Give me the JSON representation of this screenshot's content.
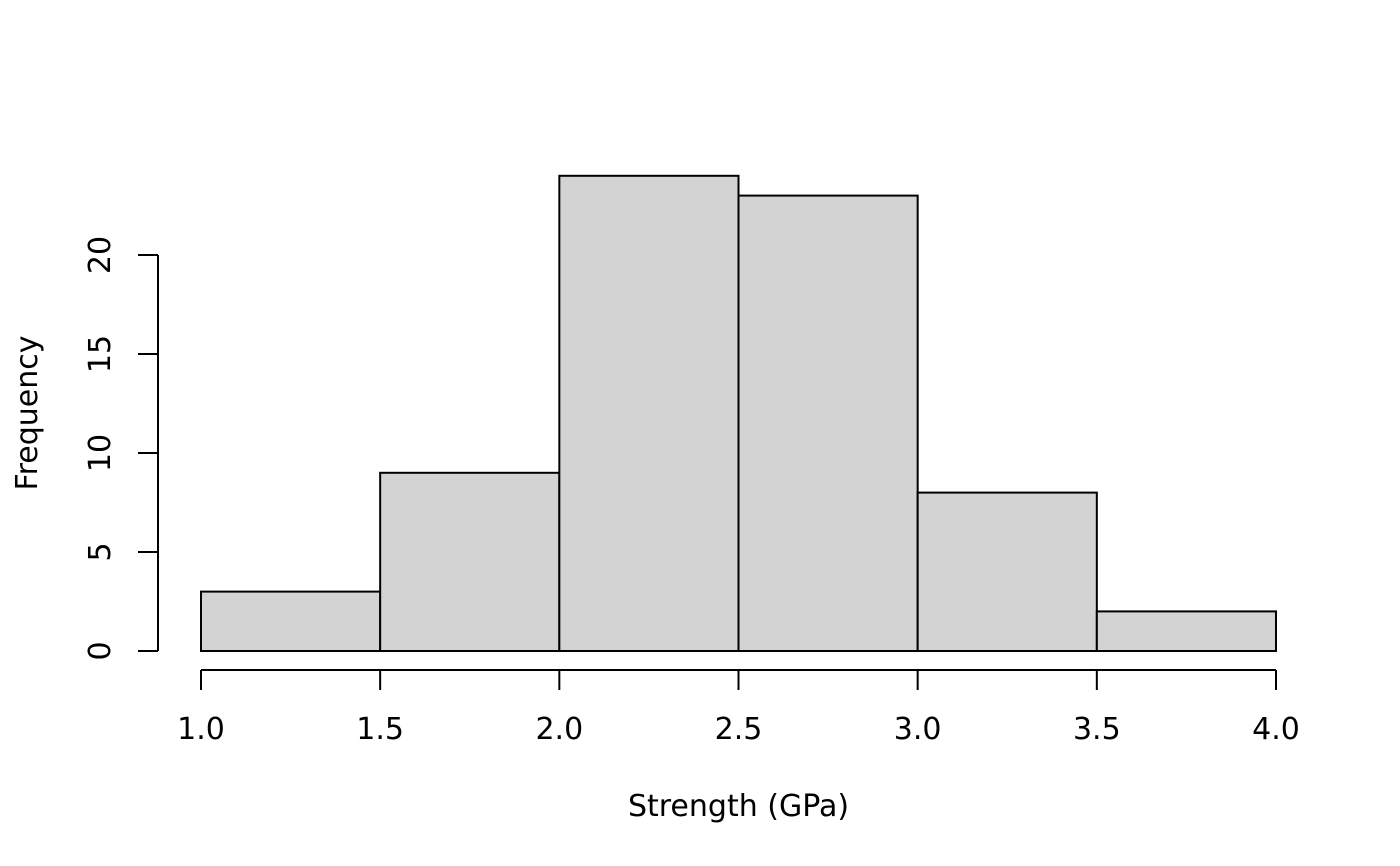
{
  "chart_data": {
    "type": "bar",
    "histogram": true,
    "title": "",
    "xlabel": "Strength (GPa)",
    "ylabel": "Frequency",
    "bins": [
      {
        "start": 1.0,
        "end": 1.5,
        "count": 3
      },
      {
        "start": 1.5,
        "end": 2.0,
        "count": 9
      },
      {
        "start": 2.0,
        "end": 2.5,
        "count": 24
      },
      {
        "start": 2.5,
        "end": 3.0,
        "count": 23
      },
      {
        "start": 3.0,
        "end": 3.5,
        "count": 8
      },
      {
        "start": 3.5,
        "end": 4.0,
        "count": 2
      }
    ],
    "xlim": [
      1.0,
      4.0
    ],
    "ylim": [
      0,
      24
    ],
    "x_ticks": [
      "1.0",
      "1.5",
      "2.0",
      "2.5",
      "3.0",
      "3.5",
      "4.0"
    ],
    "y_ticks": [
      "0",
      "5",
      "10",
      "15",
      "20"
    ],
    "grid": false,
    "bar_color": "#d3d3d3",
    "edge_color": "#000000"
  }
}
